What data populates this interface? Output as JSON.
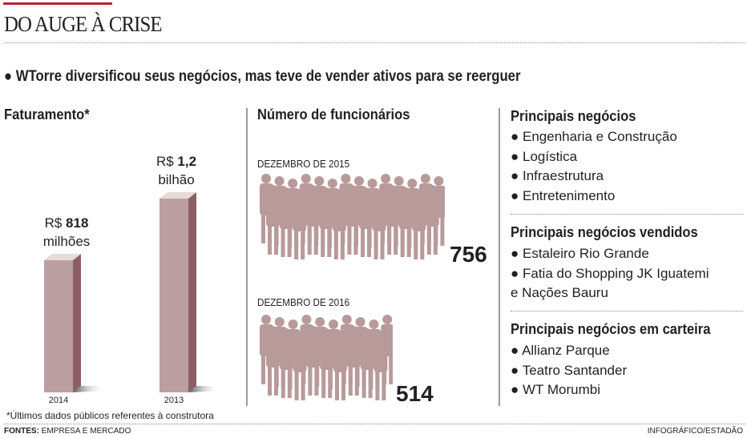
{
  "header": {
    "title": "DO AUGE À CRISE",
    "subtitle": "WTorre diversificou seus negócios, mas teve de vender  ativos para se reerguer"
  },
  "chart_data": {
    "type": "bar",
    "title": "Faturamento*",
    "unit": "R$ milhões",
    "categories": [
      "2014",
      "2013"
    ],
    "values": [
      818,
      1200
    ],
    "labels": [
      {
        "prefix": "R$ ",
        "value": "818",
        "suffix": "milhões"
      },
      {
        "prefix": "R$ ",
        "value": "1,2",
        "suffix": "bilhão"
      }
    ],
    "colors": {
      "front": "#bc9fa0",
      "side": "#8c5f64",
      "top": "#e6dada"
    },
    "footnote": "*Últimos dados públicos referentes à construtora"
  },
  "employees": {
    "title": "Número de funcionários",
    "groups": [
      {
        "label": "DEZEMBRO DE 2015",
        "value": "756",
        "count": 756
      },
      {
        "label": "DEZEMBRO DE 2016",
        "value": "514",
        "count": 514
      }
    ],
    "color": "#b89a9a"
  },
  "business": {
    "sections": [
      {
        "title": "Principais negócios",
        "items": [
          "Engenharia e Construção",
          "Logística",
          "Infraestrutura",
          "Entretenimento"
        ]
      },
      {
        "title": "Principais negócios vendidos",
        "items": [
          "Estaleiro Rio Grande",
          "Fatia do Shopping JK Iguatemi",
          "e Nações Bauru"
        ]
      },
      {
        "title": "Principais negócios em carteira",
        "items": [
          "Allianz Parque",
          "Teatro Santander",
          "WT Morumbi"
        ]
      }
    ]
  },
  "footer": {
    "sources_label": "FONTES:",
    "sources": "EMPRESA E MERCADO",
    "credit": "INFOGRÁFICO/ESTADÃO"
  }
}
